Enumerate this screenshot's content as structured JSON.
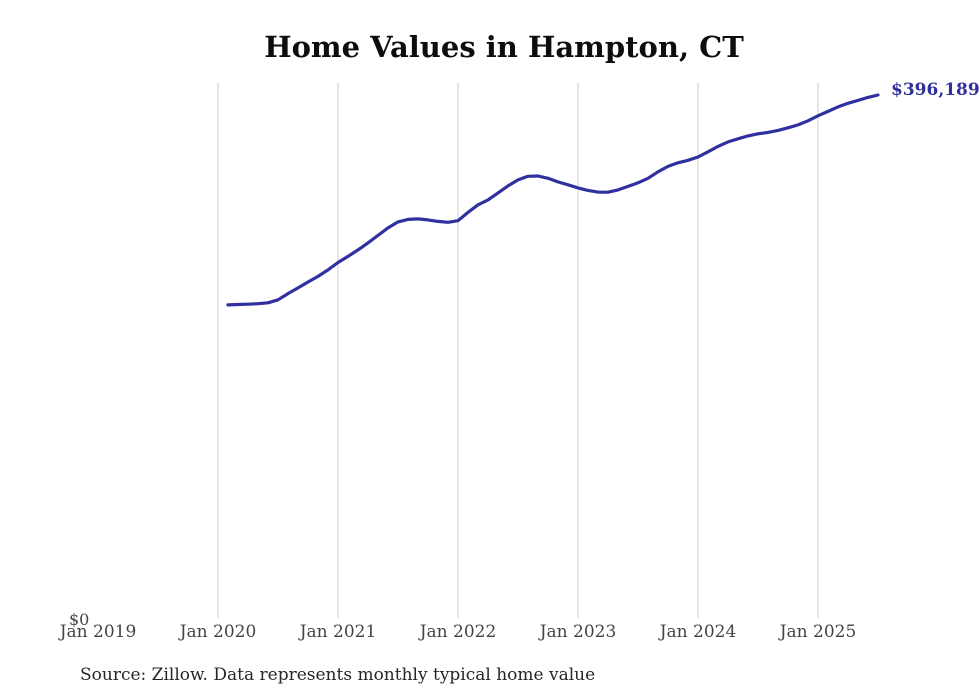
{
  "header": {
    "title": "Home Values in Hampton, CT"
  },
  "footer": {
    "source": "Source: Zillow. Data represents monthly typical home value"
  },
  "chart_data": {
    "type": "line",
    "title": "Home Values in Hampton, CT",
    "series_name": "Monthly typical home value",
    "unit": "USD",
    "x": [
      "Feb 2020",
      "Mar 2020",
      "Apr 2020",
      "May 2020",
      "Jun 2020",
      "Jul 2020",
      "Aug 2020",
      "Sep 2020",
      "Oct 2020",
      "Nov 2020",
      "Dec 2020",
      "Jan 2021",
      "Feb 2021",
      "Mar 2021",
      "Apr 2021",
      "May 2021",
      "Jun 2021",
      "Jul 2021",
      "Aug 2021",
      "Sep 2021",
      "Oct 2021",
      "Nov 2021",
      "Dec 2021",
      "Jan 2022",
      "Feb 2022",
      "Mar 2022",
      "Apr 2022",
      "May 2022",
      "Jun 2022",
      "Jul 2022",
      "Aug 2022",
      "Sep 2022",
      "Oct 2022",
      "Nov 2022",
      "Dec 2022",
      "Jan 2023",
      "Feb 2023",
      "Mar 2023",
      "Apr 2023",
      "May 2023",
      "Jun 2023",
      "Jul 2023",
      "Aug 2023",
      "Sep 2023",
      "Oct 2023",
      "Nov 2023",
      "Dec 2023",
      "Jan 2024",
      "Feb 2024",
      "Mar 2024",
      "Apr 2024",
      "May 2024",
      "Jun 2024",
      "Jul 2024",
      "Aug 2024",
      "Sep 2024",
      "Oct 2024",
      "Nov 2024",
      "Dec 2024",
      "Jan 2025",
      "Feb 2025",
      "Mar 2025",
      "Apr 2025",
      "May 2025",
      "Jun 2025",
      "Jul 2025"
    ],
    "values": [
      237800,
      238100,
      238300,
      238700,
      239400,
      241600,
      246300,
      250600,
      255100,
      259300,
      264200,
      269800,
      274400,
      279300,
      284600,
      290200,
      295900,
      300400,
      302300,
      302700,
      301900,
      300800,
      300100,
      301300,
      307600,
      313300,
      317000,
      322300,
      327600,
      332100,
      334800,
      335100,
      333300,
      330600,
      328400,
      326100,
      324200,
      322900,
      322800,
      324600,
      327200,
      329900,
      333300,
      338200,
      342300,
      345000,
      346900,
      349400,
      353300,
      357400,
      360800,
      363100,
      365300,
      366900,
      368000,
      369500,
      371400,
      373600,
      376700,
      380500,
      383800,
      387200,
      389900,
      392100,
      394400,
      396189
    ],
    "x_ticks": [
      "Jan 2019",
      "Jan 2020",
      "Jan 2021",
      "Jan 2022",
      "Jan 2023",
      "Jan 2024",
      "Jan 2025"
    ],
    "y_axis": {
      "zero_label": "$0",
      "min": 0
    },
    "end_label": "$396,189",
    "final_value": 396189,
    "line_color": "#30309f",
    "gridline_color": "#cccccc",
    "grid": "vertical-only",
    "legend": "none"
  }
}
